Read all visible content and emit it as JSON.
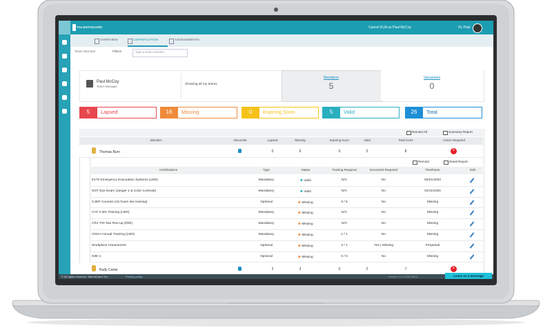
{
  "app": {
    "logo": "TALENTGUARD",
    "impersonation": "Cancel EUA as Paul McCoy",
    "greeting": "Hi, Paul"
  },
  "tabs": [
    "OVERVIEW",
    "CERTIFICATION",
    "ASSESSMENTS"
  ],
  "filters": {
    "label": "Team Member",
    "button": "Filters",
    "placeholder": "Type a team member"
  },
  "manager": {
    "name": "Paul McCoy",
    "role": "Team Manager",
    "scope": "Showing all my teams"
  },
  "summary": [
    {
      "label": "Members",
      "value": 5
    },
    {
      "label": "Vacancies",
      "value": 0
    }
  ],
  "statuses": [
    {
      "value": 5,
      "label": "Lapsed"
    },
    {
      "value": 16,
      "label": "Missing"
    },
    {
      "value": 0,
      "label": "Expiring Soon"
    },
    {
      "value": 5,
      "label": "Valid"
    },
    {
      "value": 26,
      "label": "Total"
    }
  ],
  "members_table": {
    "actions": [
      "Remind All",
      "Summary Report"
    ],
    "columns": [
      "Member",
      "About Me",
      "Lapsed",
      "Missing",
      "Expiring Soon",
      "Valid",
      "Total Certs",
      "Action Required"
    ],
    "rows": [
      {
        "name": "Thomas Burn",
        "counts": [
          0,
          6,
          0,
          2,
          8
        ],
        "action": 6
      },
      {
        "name": "Rudy Carter",
        "counts": [
          2,
          3,
          0,
          2,
          7
        ],
        "action": 5
      }
    ]
  },
  "detail_table": {
    "actions": [
      "Remind",
      "Detail Report"
    ],
    "columns": [
      "Certifications",
      "Type",
      "Status",
      "Training Required",
      "Document Required",
      "Timeframe",
      "Edit"
    ],
    "rows": [
      [
        "E175 Emergency Evacuation Systems (LMS)",
        "Mandatory",
        "Valid",
        "N/A",
        "No",
        "06/21/2020"
      ],
      [
        "NOT Eye Exam (Jaeger 1 & Color Contrast)",
        "Mandatory",
        "Valid",
        "N/A",
        "No",
        "04/11/2020"
      ],
      [
        "CJER Courses (15 hours live training)",
        "Optional",
        "Missing",
        "0 / 5",
        "No",
        "Missing"
      ],
      [
        "CAT II MX Training (LMS)",
        "Mandatory",
        "Missing",
        "N/A",
        "No",
        "Missing"
      ],
      [
        "CRJ 700 Taxi Run-up (DMI)",
        "Mandatory",
        "Missing",
        "N/A",
        "No",
        "Missing"
      ],
      [
        "OSHA Annual Training (LMS)",
        "Mandatory",
        "Missing",
        "1 / 1",
        "No",
        "Missing"
      ],
      [
        "Workplace Harassment",
        "Optional",
        "Missing",
        "2 / 1",
        "Yes | Missing",
        "Perpetual"
      ],
      [
        "NIIE 1",
        "Optional",
        "Missing",
        "0 / 9",
        "No",
        "Missing"
      ]
    ]
  },
  "footer": {
    "copyright": "© All rights reserved. TalentGuard, Inc",
    "privacy": "Privacy policy",
    "version": "Version 9.0.7145.25674",
    "message": "Leave us a message"
  }
}
